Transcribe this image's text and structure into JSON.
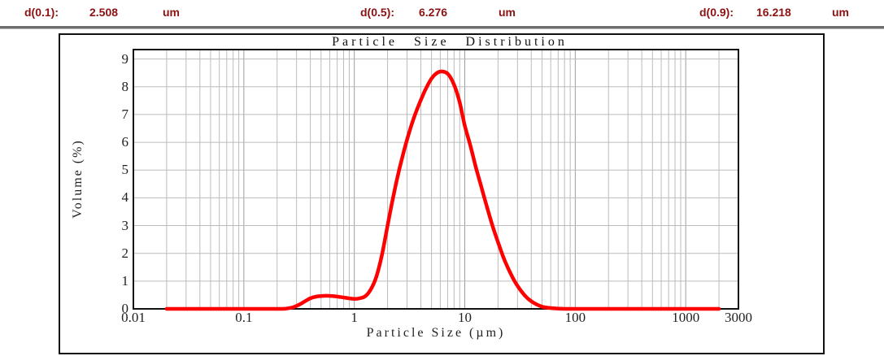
{
  "header": {
    "metrics": [
      {
        "label": "d(0.1):",
        "value": "2.508",
        "unit": "um"
      },
      {
        "label": "d(0.5):",
        "value": "6.276",
        "unit": "um"
      },
      {
        "label": "d(0.9):",
        "value": "16.218",
        "unit": "um"
      }
    ]
  },
  "chart_data": {
    "type": "line",
    "title": "Particle Size Distribution",
    "xlabel": "Particle Size (µm)",
    "ylabel": "Volume (%)",
    "x_scale": "log",
    "xlim": [
      0.01,
      3000
    ],
    "ylim": [
      0,
      9.35
    ],
    "x_tick_values": [
      0.01,
      0.1,
      1,
      10,
      100,
      1000,
      3000
    ],
    "x_tick_labels": [
      "0.01",
      "0.1",
      "1",
      "10",
      "100",
      "1000",
      "3000"
    ],
    "y_tick_values": [
      0,
      1,
      2,
      3,
      4,
      5,
      6,
      7,
      8,
      9
    ],
    "grid": true,
    "legend": "none",
    "series": [
      {
        "name": "volume-percent",
        "color": "#fe0000",
        "points": [
          [
            0.02,
            0
          ],
          [
            0.05,
            0
          ],
          [
            0.1,
            0
          ],
          [
            0.15,
            0
          ],
          [
            0.2,
            0
          ],
          [
            0.24,
            0.01
          ],
          [
            0.28,
            0.06
          ],
          [
            0.32,
            0.16
          ],
          [
            0.36,
            0.28
          ],
          [
            0.4,
            0.38
          ],
          [
            0.45,
            0.44
          ],
          [
            0.5,
            0.46
          ],
          [
            0.56,
            0.47
          ],
          [
            0.63,
            0.46
          ],
          [
            0.71,
            0.44
          ],
          [
            0.8,
            0.41
          ],
          [
            0.89,
            0.38
          ],
          [
            1.0,
            0.36
          ],
          [
            1.12,
            0.38
          ],
          [
            1.26,
            0.46
          ],
          [
            1.41,
            0.7
          ],
          [
            1.58,
            1.15
          ],
          [
            1.78,
            1.95
          ],
          [
            2.0,
            3.0
          ],
          [
            2.24,
            4.0
          ],
          [
            2.51,
            4.9
          ],
          [
            2.82,
            5.7
          ],
          [
            3.16,
            6.4
          ],
          [
            3.55,
            7.0
          ],
          [
            3.98,
            7.5
          ],
          [
            4.47,
            7.95
          ],
          [
            5.01,
            8.3
          ],
          [
            5.62,
            8.5
          ],
          [
            6.31,
            8.55
          ],
          [
            7.08,
            8.45
          ],
          [
            7.94,
            8.1
          ],
          [
            8.91,
            7.5
          ],
          [
            10.0,
            6.6
          ],
          [
            11.2,
            5.9
          ],
          [
            12.6,
            5.1
          ],
          [
            14.1,
            4.4
          ],
          [
            15.8,
            3.7
          ],
          [
            17.8,
            3.0
          ],
          [
            20.0,
            2.4
          ],
          [
            22.4,
            1.85
          ],
          [
            25.1,
            1.4
          ],
          [
            28.2,
            1.0
          ],
          [
            31.6,
            0.7
          ],
          [
            35.5,
            0.45
          ],
          [
            39.8,
            0.28
          ],
          [
            44.7,
            0.16
          ],
          [
            50.1,
            0.08
          ],
          [
            56.2,
            0.04
          ],
          [
            63.1,
            0.02
          ],
          [
            70.8,
            0.01
          ],
          [
            79.4,
            0
          ],
          [
            100,
            0
          ],
          [
            158,
            0
          ],
          [
            251,
            0
          ],
          [
            398,
            0
          ],
          [
            631,
            0
          ],
          [
            1000,
            0
          ],
          [
            1585,
            0
          ],
          [
            2000,
            0
          ]
        ]
      }
    ]
  },
  "colors": {
    "accent_text": "#8b1212",
    "curve": "#fe0000",
    "grid_minor": "#bcbcbc",
    "grid_major": "#9c9c9c",
    "divider": "#6e6e6e",
    "frame": "#111111"
  }
}
